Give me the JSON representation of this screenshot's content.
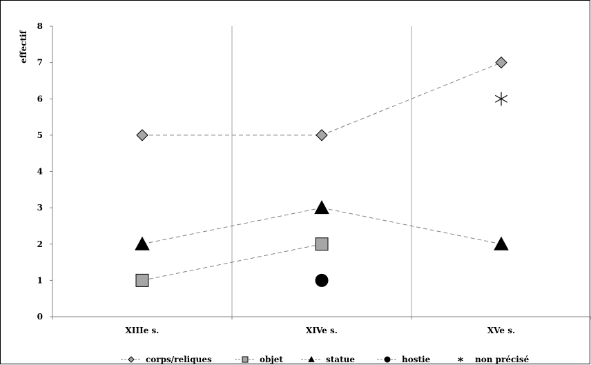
{
  "chart_data": {
    "type": "line",
    "title": "",
    "xlabel": "",
    "ylabel": "effectif",
    "categories": [
      "XIIIe s.",
      "XIVe s.",
      "XVe s."
    ],
    "ylim": [
      0,
      8
    ],
    "yticks": [
      0,
      1,
      2,
      3,
      4,
      5,
      6,
      7,
      8
    ],
    "grid": "vertical separators between categories",
    "legend_position": "bottom",
    "series": [
      {
        "name": "corps/reliques",
        "values": [
          5,
          5,
          7
        ],
        "marker": "diamond",
        "color": "#a6a6a6",
        "line": "dashed"
      },
      {
        "name": "objet",
        "values": [
          1,
          2,
          null
        ],
        "marker": "square",
        "color": "#a6a6a6",
        "line": "dashed"
      },
      {
        "name": "statue",
        "values": [
          2,
          3,
          2
        ],
        "marker": "triangle",
        "color": "#000000",
        "line": "dashed"
      },
      {
        "name": "hostie",
        "values": [
          null,
          1,
          null
        ],
        "marker": "circle",
        "color": "#000000",
        "line": "dashed"
      },
      {
        "name": "non précisé",
        "values": [
          null,
          null,
          6
        ],
        "marker": "asterisk",
        "color": "#000000",
        "line": "none"
      }
    ]
  }
}
